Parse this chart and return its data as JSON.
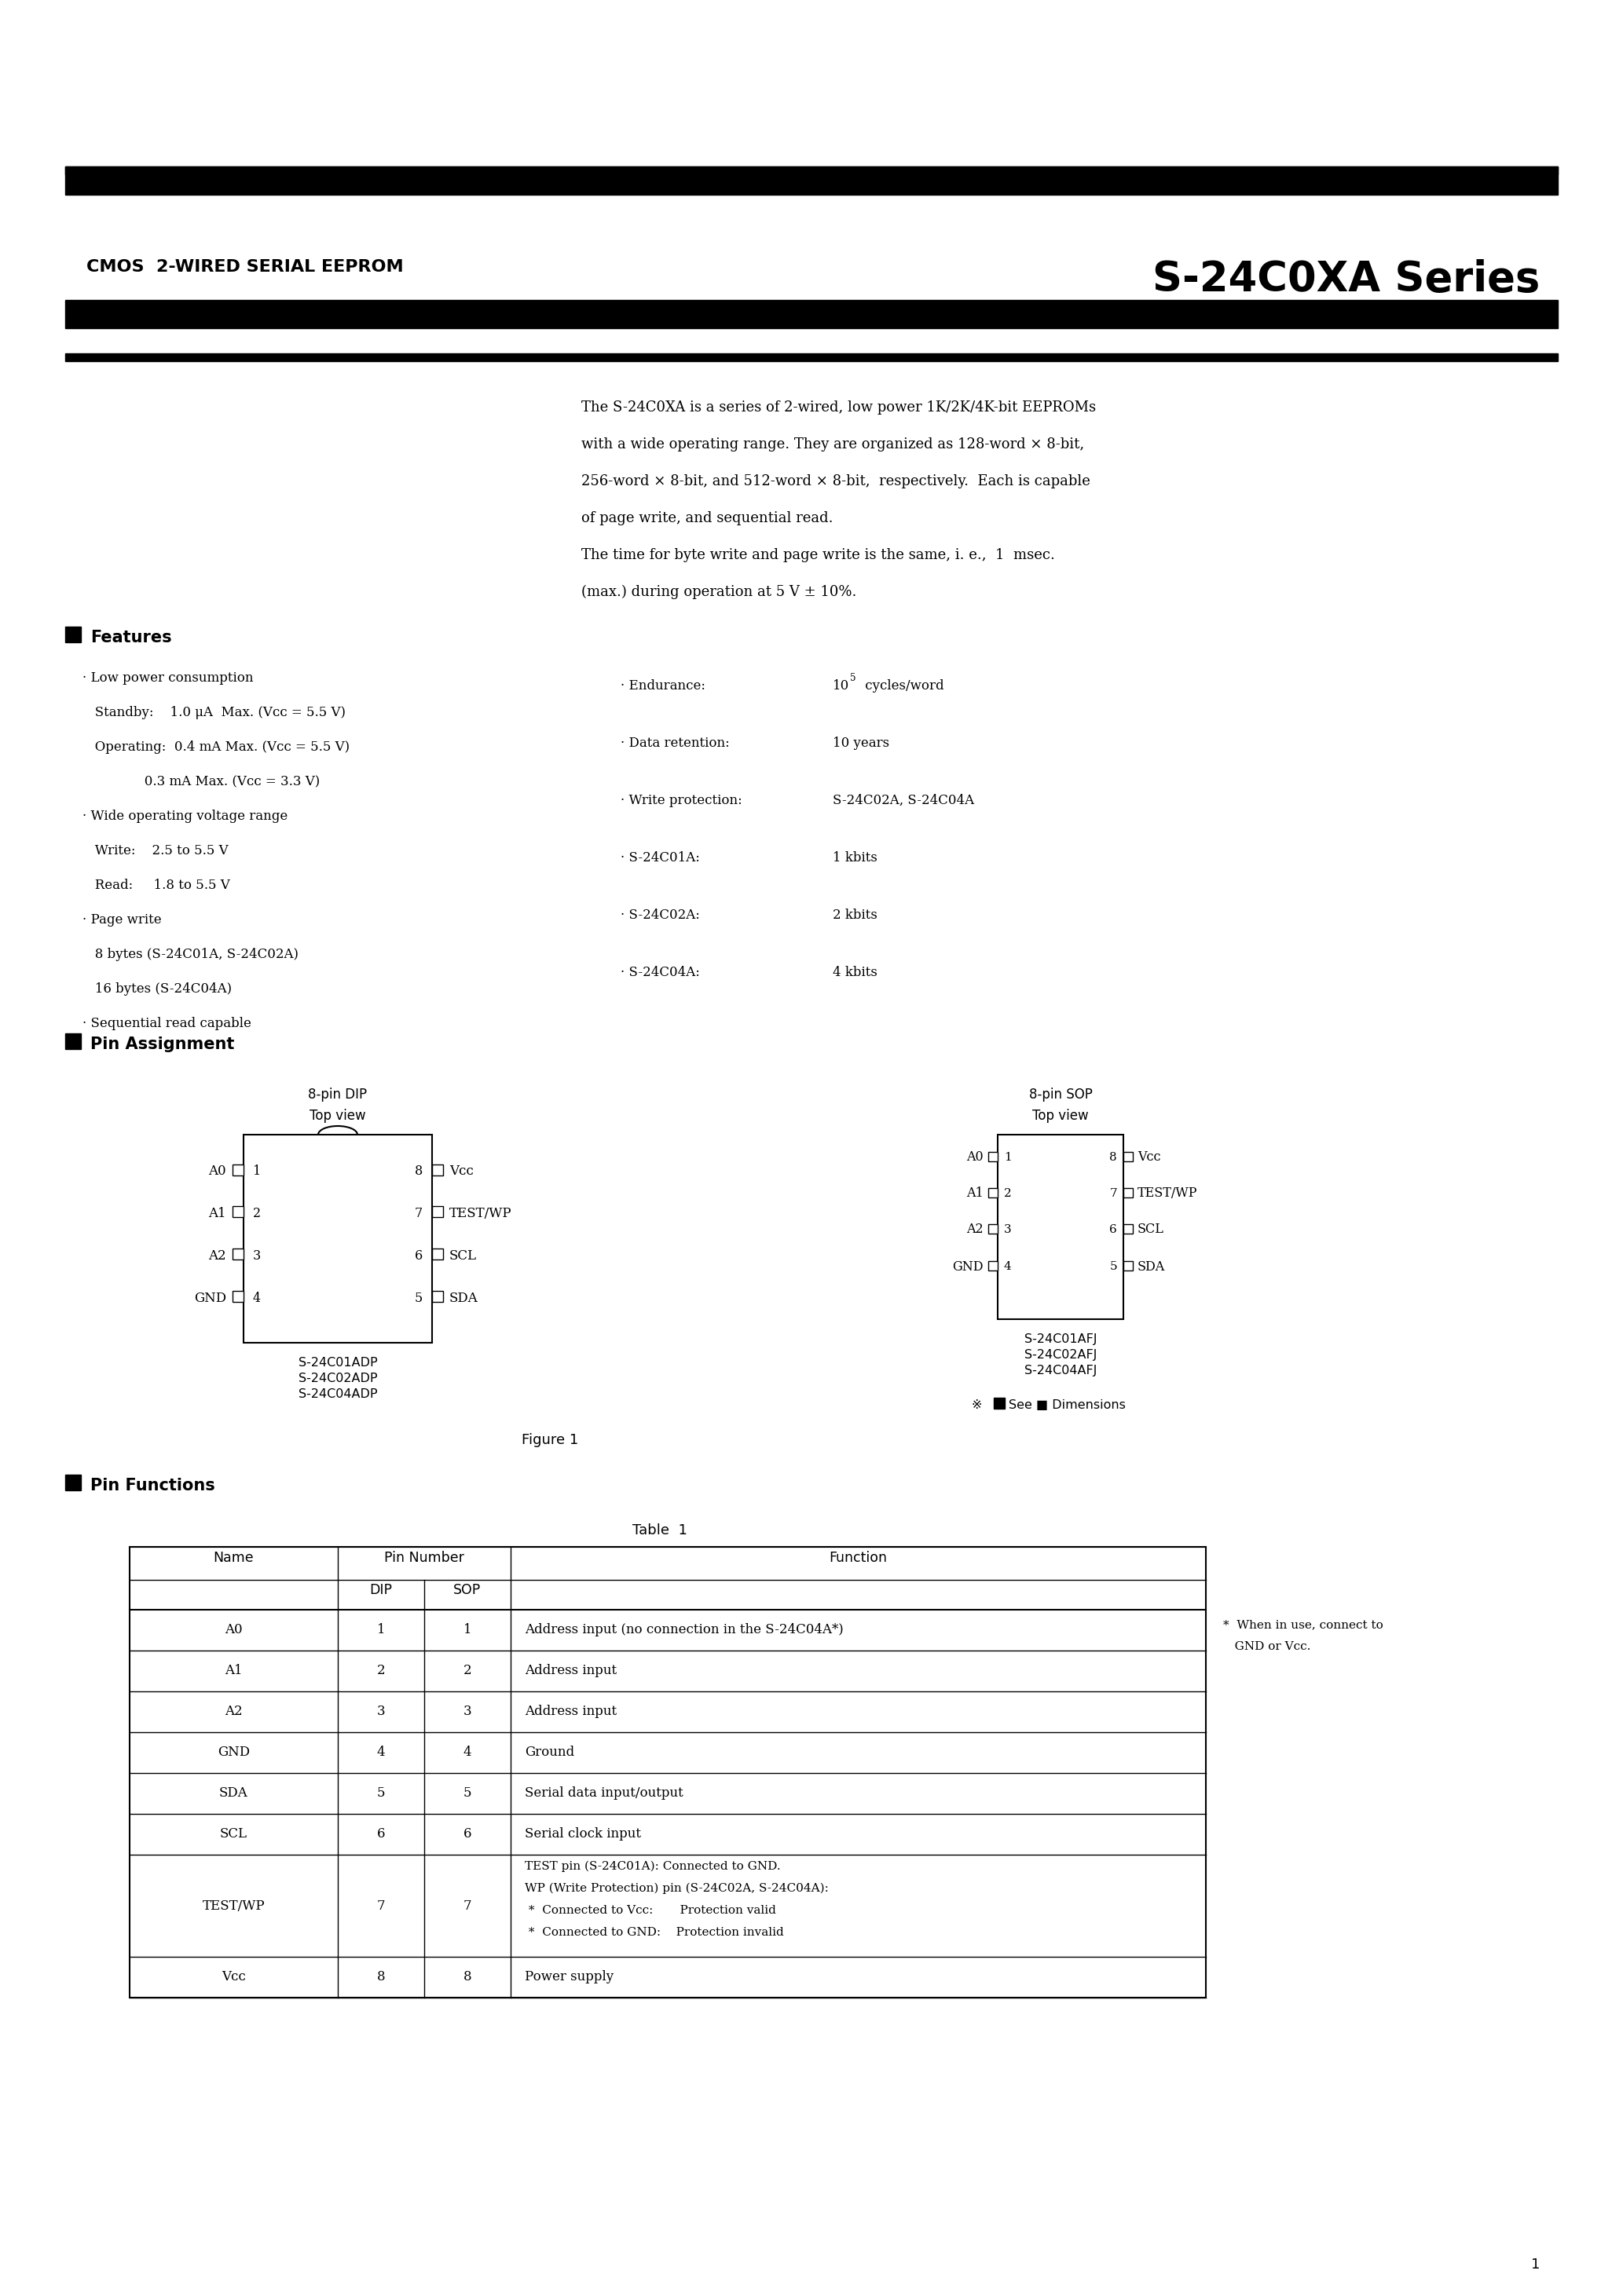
{
  "bg_color": "#ffffff",
  "title_left": "CMOS  2-WIRED SERIAL EEPROM",
  "title_right": "S-24C0XA Series",
  "intro_lines": [
    "The S-24C0XA is a series of 2-wired, low power 1K/2K/4K-bit EEPROMs",
    "with a wide operating range. They are organized as 128-word × 8-bit,",
    "256-word × 8-bit, and 512-word × 8-bit,  respectively.  Each is capable",
    "of page write, and sequential read.",
    "The time for byte write and page write is the same, i. e.,  1  msec.",
    "(max.) during operation at 5 V ± 10%."
  ],
  "feat_left_lines": [
    "· Low power consumption",
    "   Standby:    1.0 μA  Max. (Vᴄᴄ = 5.5 V)",
    "   Operating:  0.4 mA Max. (Vᴄᴄ = 5.5 V)",
    "               0.3 mA Max. (Vᴄᴄ = 3.3 V)",
    "· Wide operating voltage range",
    "   Write:    2.5 to 5.5 V",
    "   Read:     1.8 to 5.5 V",
    "· Page write",
    "   8 bytes (S-24C01A, S-24C02A)",
    "   16 bytes (S-24C04A)",
    "· Sequential read capable"
  ],
  "feat_right_lines": [
    [
      "· Endurance:",
      "10",
      "5",
      " cycles/word"
    ],
    [
      "· Data retention:",
      "10 years",
      "",
      ""
    ],
    [
      "· Write protection:",
      "S-24C02A, S-24C04A",
      "",
      ""
    ],
    [
      "· S-24C01A:",
      "1 kbits",
      "",
      ""
    ],
    [
      "· S-24C02A:",
      "2 kbits",
      "",
      ""
    ],
    [
      "· S-24C04A:",
      "4 kbits",
      "",
      ""
    ]
  ],
  "dip_left_pins": [
    "A0",
    "A1",
    "A2",
    "GND"
  ],
  "dip_left_nums": [
    "1",
    "2",
    "3",
    "4"
  ],
  "dip_right_pins": [
    "Vᴄᴄ",
    "TEST/WP",
    "SCL",
    "SDA"
  ],
  "dip_right_nums": [
    "8",
    "7",
    "6",
    "5"
  ],
  "sop_left_pins": [
    "A0",
    "A1",
    "A2",
    "GND"
  ],
  "sop_left_nums": [
    "1",
    "2",
    "3",
    "4"
  ],
  "sop_right_pins": [
    "Vᴄᴄ",
    "TEST/WP",
    "SCL",
    "SDA"
  ],
  "sop_right_nums": [
    "8",
    "7",
    "6",
    "5"
  ],
  "dip_models": "S-24C01ADP\nS-24C02ADP\nS-24C04ADP",
  "sop_models": "S-24C01AFJ\nS-24C02AFJ\nS-24C04AFJ",
  "table_rows": [
    [
      "A0",
      "1",
      "1",
      "Address input (no connection in the S-24C04A*)"
    ],
    [
      "A1",
      "2",
      "2",
      "Address input"
    ],
    [
      "A2",
      "3",
      "3",
      "Address input"
    ],
    [
      "GND",
      "4",
      "4",
      "Ground"
    ],
    [
      "SDA",
      "5",
      "5",
      "Serial data input/output"
    ],
    [
      "SCL",
      "6",
      "6",
      "Serial clock input"
    ],
    [
      "TEST/WP",
      "7",
      "7",
      "TEST pin (S-24C01A): Connected to GND.\nWP (Write Protection) pin (S-24C02A, S-24C04A):\n *  Connected to Vcc:       Protection valid\n *  Connected to GND:    Protection invalid"
    ],
    [
      "Vᴄᴄ",
      "8",
      "8",
      "Power supply"
    ]
  ],
  "footnote_line1": "*  When in use, connect to",
  "footnote_line2": "   GND or Vcc.",
  "page_number": "1"
}
